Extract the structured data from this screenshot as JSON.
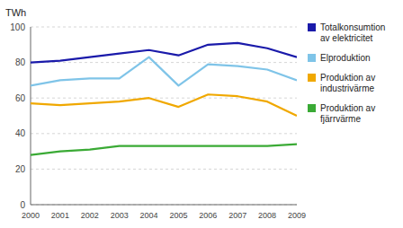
{
  "chart_data": {
    "type": "line",
    "ylabel": "TWh",
    "x": [
      2000,
      2001,
      2002,
      2003,
      2004,
      2005,
      2006,
      2007,
      2008,
      2009
    ],
    "xlim": [
      2000,
      2009
    ],
    "xticks": [
      2000,
      2001,
      2002,
      2003,
      2004,
      2005,
      2006,
      2007,
      2008,
      2009
    ],
    "ylim": [
      0,
      100
    ],
    "yticks": [
      0,
      20,
      40,
      60,
      80,
      100
    ],
    "grid": true,
    "legend": "right",
    "series": [
      {
        "name": "Totalkonsumtion\nav elektricitet",
        "color": "#1a1aaa",
        "values": [
          80,
          81,
          83,
          85,
          87,
          84,
          90,
          91,
          88,
          83
        ]
      },
      {
        "name": "Elproduktion",
        "color": "#7fc4e8",
        "values": [
          67,
          70,
          71,
          71,
          83,
          67,
          79,
          78,
          76,
          70
        ]
      },
      {
        "name": "Produktion av\nindustrivärme",
        "color": "#f0a800",
        "values": [
          57,
          56,
          57,
          58,
          60,
          55,
          62,
          61,
          58,
          50
        ]
      },
      {
        "name": "Produktion av\nfjärrvärme",
        "color": "#3aaa35",
        "values": [
          28,
          30,
          31,
          33,
          33,
          33,
          33,
          33,
          33,
          34
        ]
      }
    ]
  }
}
